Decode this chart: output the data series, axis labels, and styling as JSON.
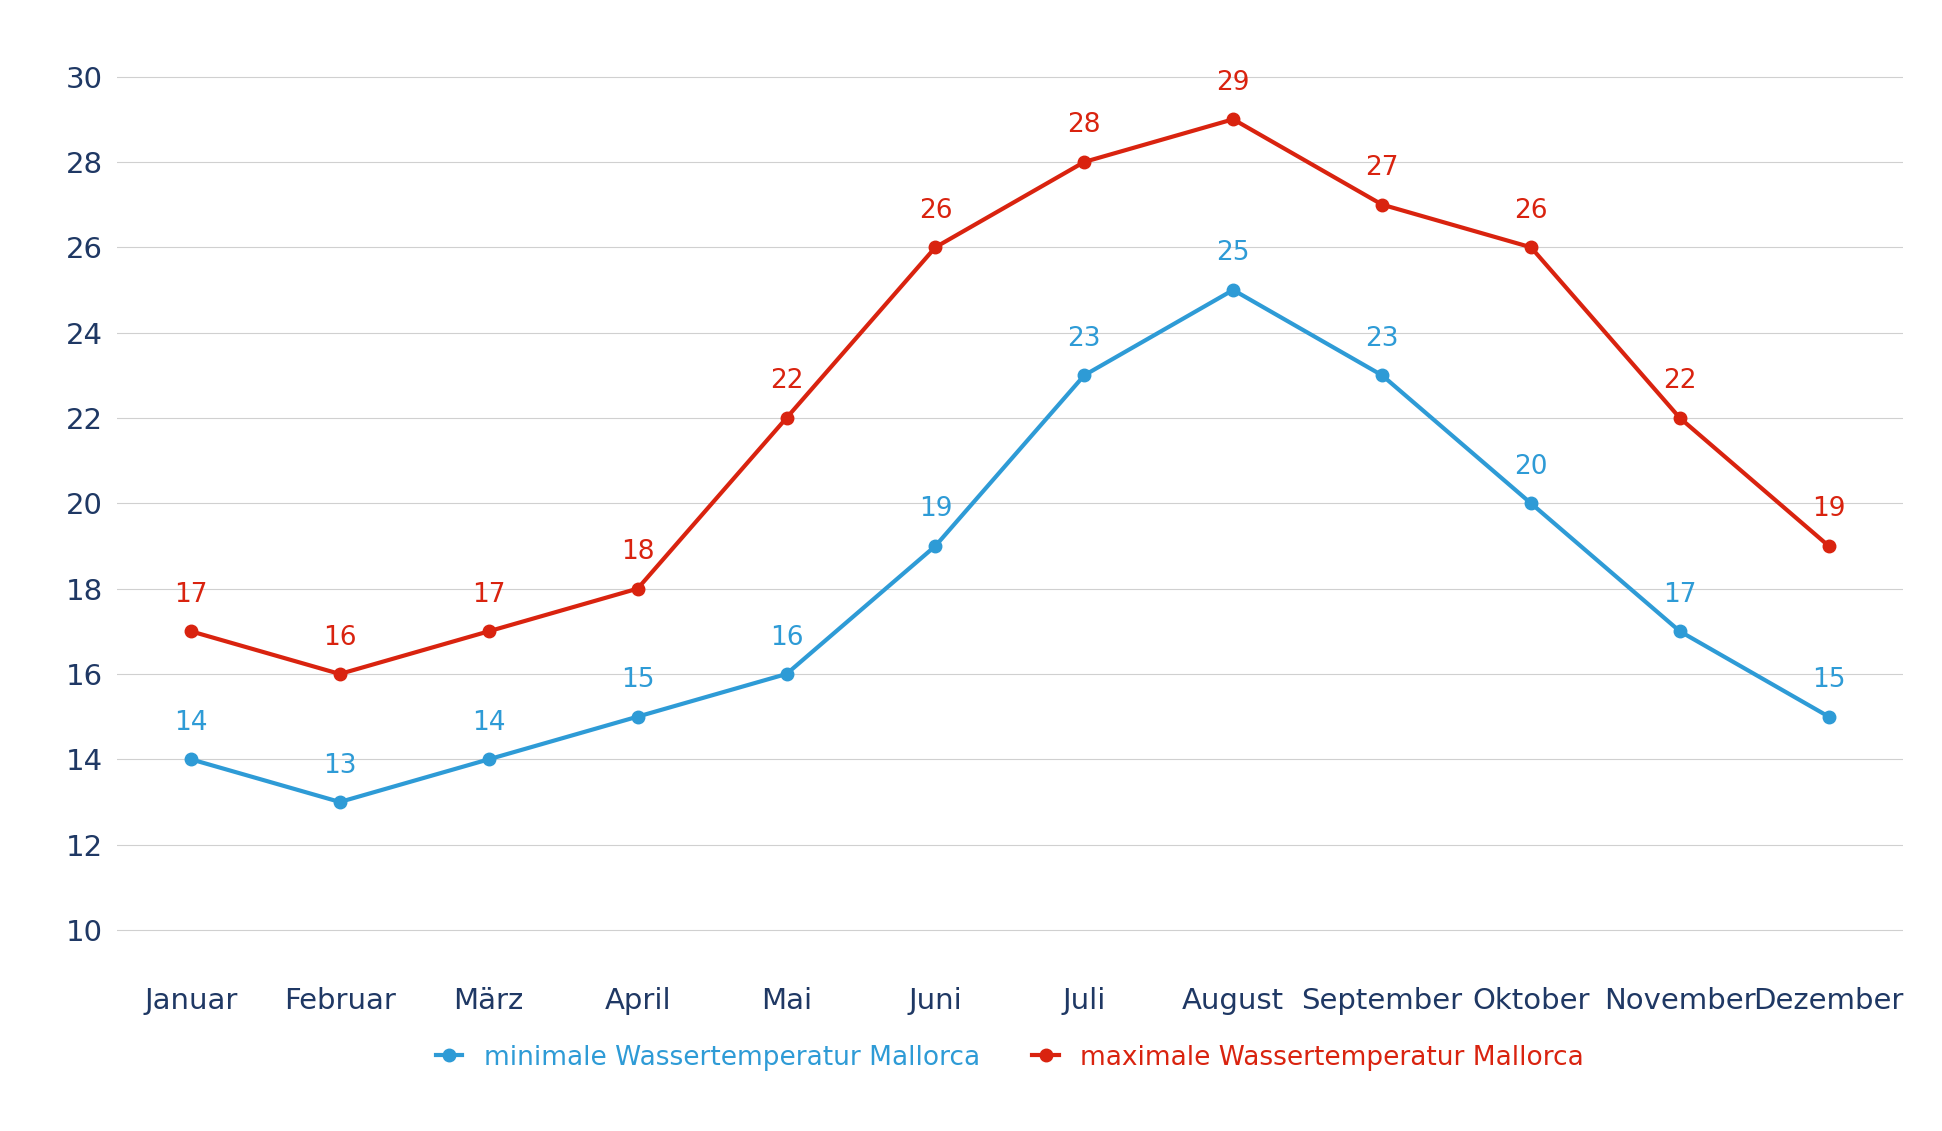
{
  "months": [
    "Januar",
    "Februar",
    "März",
    "April",
    "Mai",
    "Juni",
    "Juli",
    "August",
    "September",
    "Oktober",
    "November",
    "Dezember"
  ],
  "min_temps": [
    14,
    13,
    14,
    15,
    16,
    19,
    23,
    25,
    23,
    20,
    17,
    15
  ],
  "max_temps": [
    17,
    16,
    17,
    18,
    22,
    26,
    28,
    29,
    27,
    26,
    22,
    19
  ],
  "min_color": "#2E9BD6",
  "max_color": "#D9230F",
  "min_label": "minimale Wassertemperatur Mallorca",
  "max_label": "maximale Wassertemperatur Mallorca",
  "ylim": [
    9,
    31
  ],
  "yticks": [
    10,
    12,
    14,
    16,
    18,
    20,
    22,
    24,
    26,
    28,
    30
  ],
  "background_color": "#FFFFFF",
  "grid_color": "#D0D0D0",
  "line_width": 3.0,
  "marker_size": 9,
  "tick_fontsize": 21,
  "legend_fontsize": 19,
  "annotation_fontsize": 19,
  "ytick_color": "#1F3864",
  "xtick_color": "#1F3864"
}
